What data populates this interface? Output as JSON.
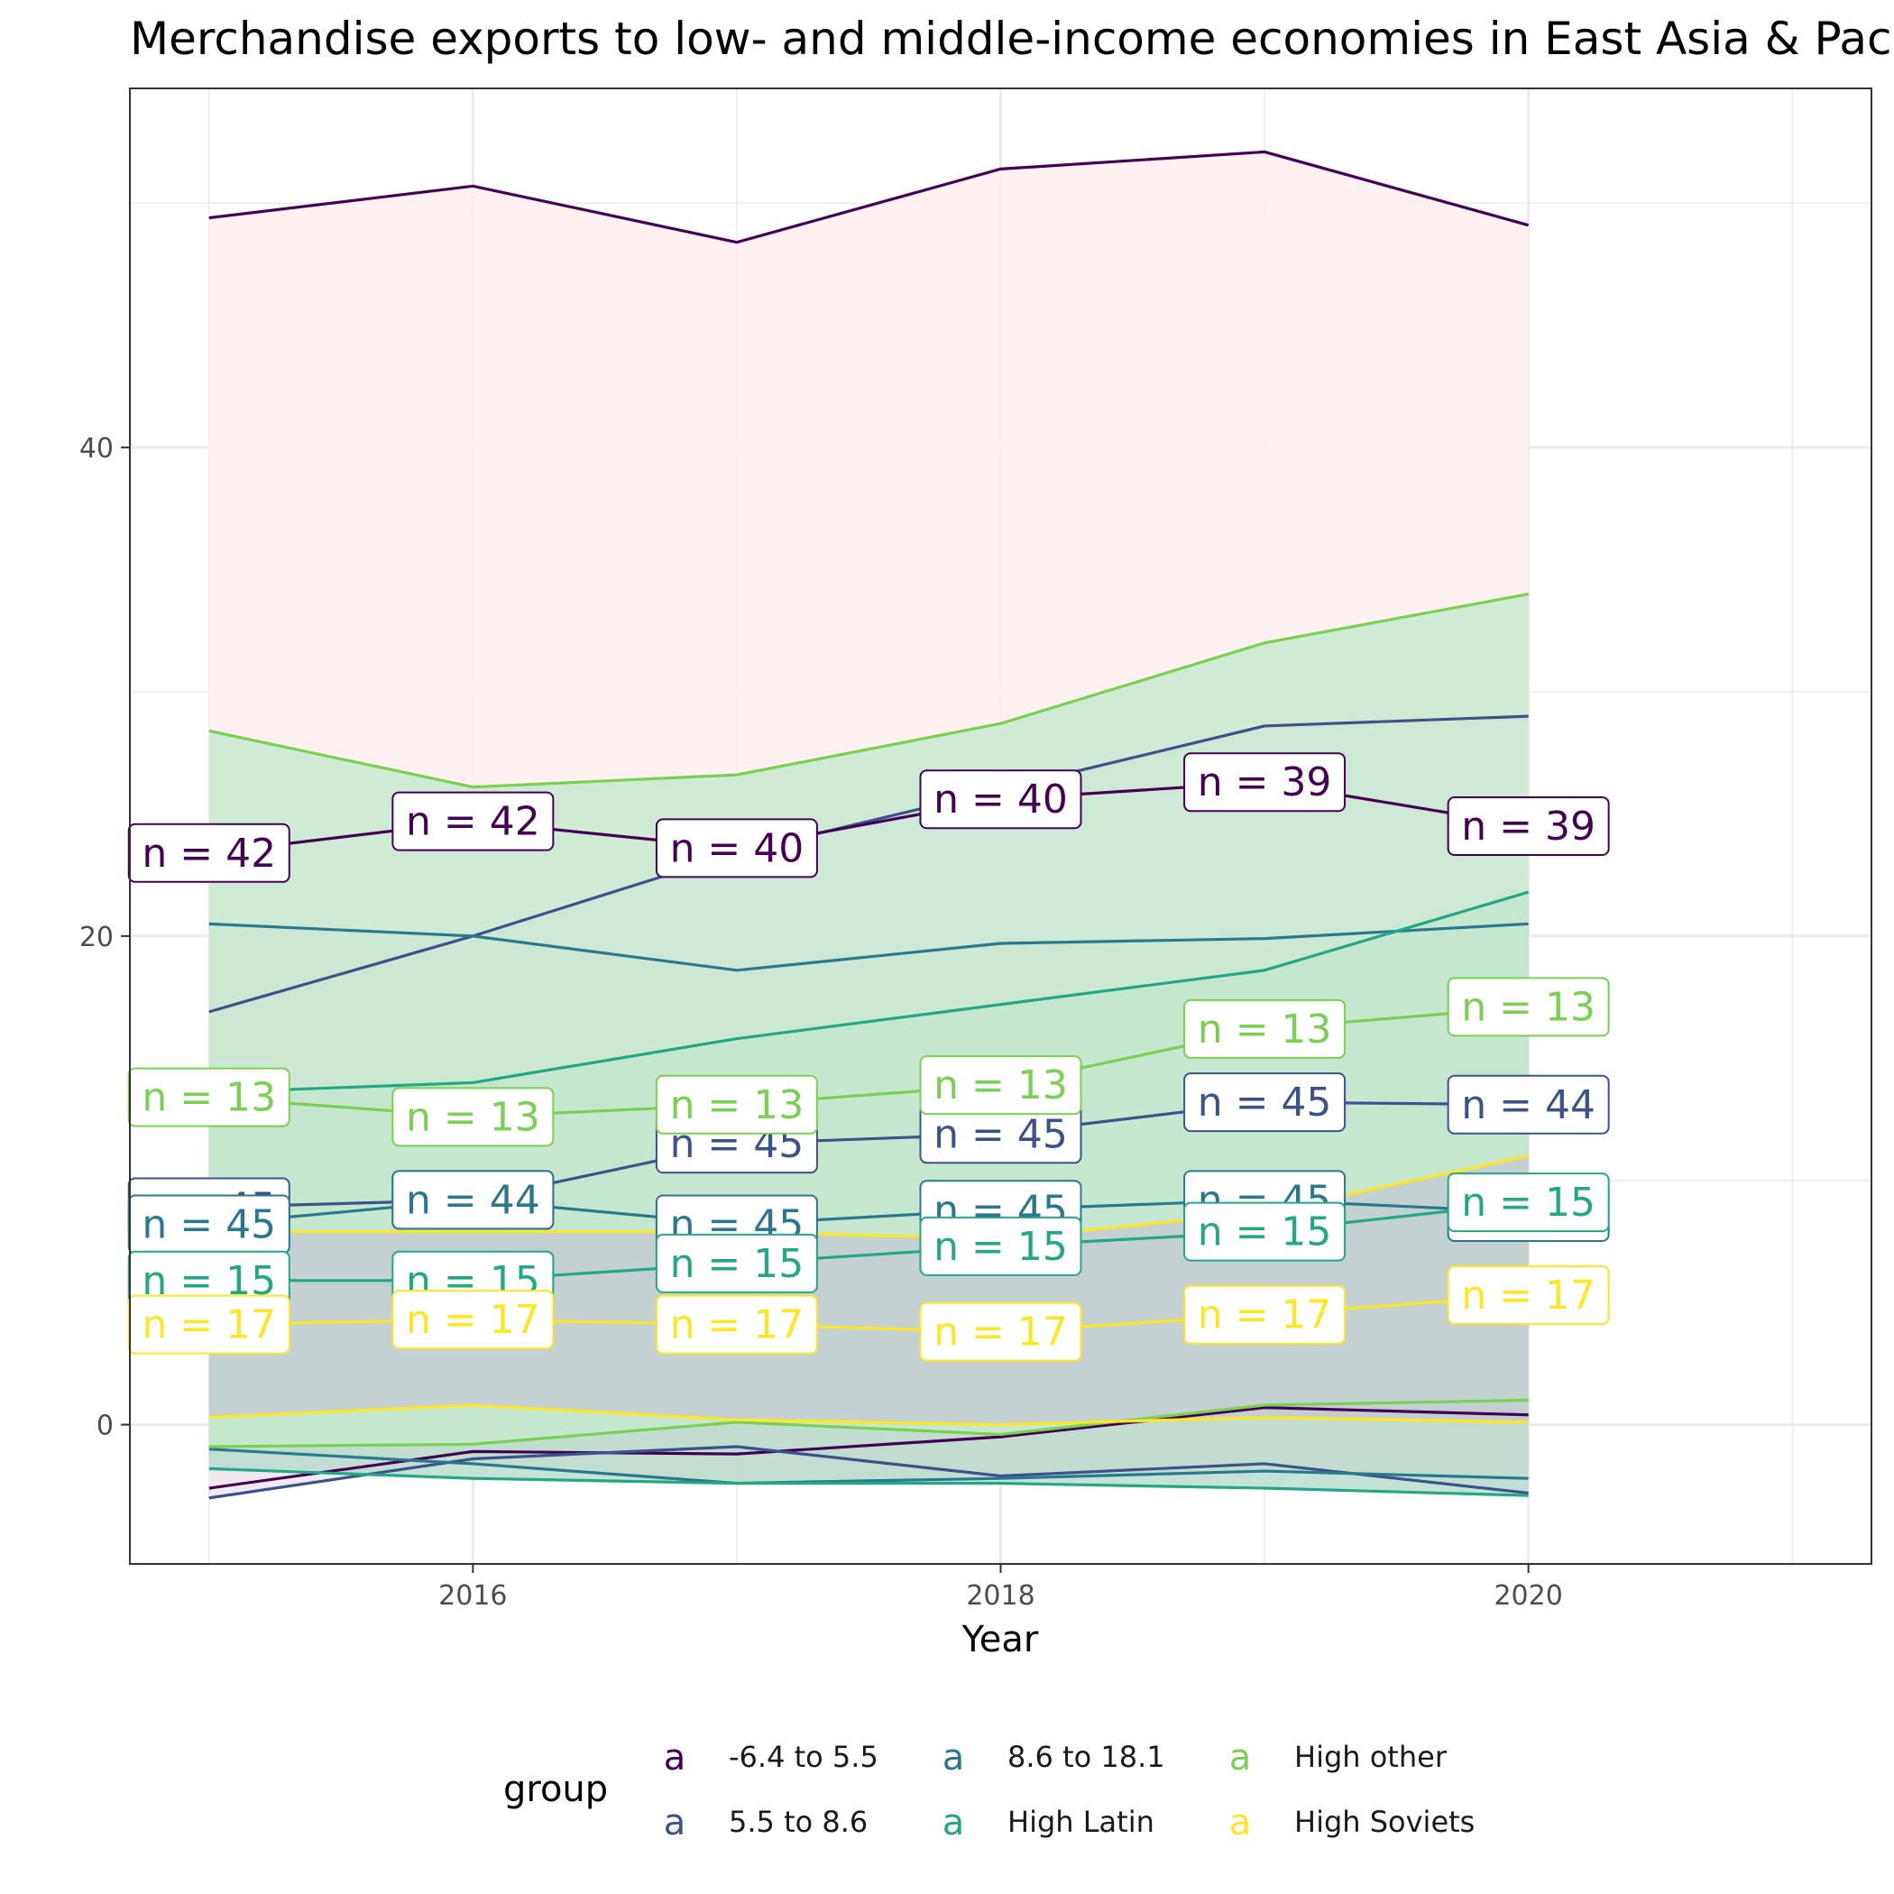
{
  "chart_data": {
    "type": "line",
    "title": "Merchandise exports to low- and middle-income economies in East Asia & Pacific (% of total merchandise exports)",
    "xlabel": "Year",
    "ylabel": "",
    "xlim": [
      2014.7,
      2021.3
    ],
    "ylim": [
      -5.7,
      54.7
    ],
    "x_ticks": [
      2016,
      2018,
      2020
    ],
    "y_ticks": [
      0,
      20,
      40
    ],
    "x_minor_gridlines": [
      2015,
      2017,
      2019,
      2021
    ],
    "y_minor_gridlines": [
      10,
      30,
      50
    ],
    "grid": true,
    "legend": {
      "title": "group",
      "placement": "bottom",
      "key_glyph": "a"
    },
    "x": [
      2015,
      2016,
      2017,
      2018,
      2019,
      2020
    ],
    "series": [
      {
        "name": "-6.4 to 5.5",
        "color": "#440154",
        "mean": [
          23.4,
          24.7,
          23.6,
          25.6,
          26.3,
          24.5
        ],
        "upper": [
          49.4,
          50.7,
          48.4,
          51.4,
          52.1,
          49.1
        ],
        "lower": [
          -2.6,
          -1.1,
          -1.2,
          -0.5,
          0.7,
          0.4
        ],
        "n": [
          42,
          42,
          40,
          40,
          39,
          39
        ],
        "band_fill": "#ffeeec"
      },
      {
        "name": "5.5 to 8.6",
        "color": "#3b528b",
        "mean": [
          8.9,
          9.2,
          11.5,
          11.9,
          13.2,
          13.1
        ],
        "upper": [
          16.9,
          20.0,
          23.4,
          26.0,
          28.6,
          29.0
        ],
        "lower": [
          -3.0,
          -1.4,
          -0.9,
          -2.1,
          -1.6,
          -2.8
        ],
        "n": [
          45,
          44,
          45,
          45,
          45,
          44
        ],
        "band_fill": "#ebe5f0"
      },
      {
        "name": "8.6 to 18.1",
        "color": "#21908c",
        "mean": [
          8.2,
          9.2,
          8.2,
          8.8,
          9.2,
          8.7
        ],
        "upper": [
          20.5,
          20.0,
          18.6,
          19.7,
          19.9,
          20.5
        ],
        "lower": [
          -1.0,
          -1.6,
          -2.4,
          -2.2,
          -1.9,
          -2.2
        ],
        "n": [
          45,
          44,
          45,
          45,
          45,
          44
        ],
        "line_color": "#2a788e",
        "band_fill": "#e6dfda"
      },
      {
        "name": "High Latin",
        "color": "#22a884",
        "mean": [
          5.9,
          5.9,
          6.6,
          7.3,
          7.9,
          9.1
        ],
        "upper": [
          13.6,
          14.0,
          15.8,
          17.2,
          18.6,
          21.8
        ],
        "lower": [
          -1.8,
          -2.2,
          -2.4,
          -2.4,
          -2.6,
          -2.9
        ],
        "n": [
          15,
          15,
          15,
          15,
          15,
          15
        ],
        "band_fill": "#b8dccd"
      },
      {
        "name": "High other",
        "color": "#7ad151",
        "mean": [
          13.4,
          12.6,
          13.1,
          13.9,
          16.2,
          17.1
        ],
        "upper": [
          28.4,
          26.1,
          26.6,
          28.7,
          32.0,
          34.0
        ],
        "lower": [
          -0.9,
          -0.8,
          0.1,
          -0.4,
          0.8,
          1.0
        ],
        "n": [
          13,
          13,
          13,
          13,
          13,
          13
        ],
        "band_fill": "#c6e9cf"
      },
      {
        "name": "High Soviets",
        "color": "#fde725",
        "mean": [
          4.1,
          4.3,
          4.1,
          3.8,
          4.5,
          5.3
        ],
        "upper": [
          7.9,
          7.9,
          7.9,
          7.6,
          8.7,
          11.0
        ],
        "lower": [
          0.3,
          0.8,
          0.2,
          0.0,
          0.3,
          0.1
        ],
        "n": [
          17,
          17,
          17,
          17,
          17,
          17
        ],
        "band_fill": "#c3cbd1"
      }
    ]
  }
}
